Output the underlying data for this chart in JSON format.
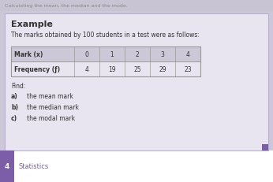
{
  "title_text": "Example",
  "subtitle_text": "The marks obtained by 100 students in a test were as follows:",
  "header_row": [
    "Mark (x)",
    "0",
    "1",
    "2",
    "3",
    "4"
  ],
  "data_row": [
    "Frequency (ƒ)",
    "4",
    "19",
    "25",
    "29",
    "23"
  ],
  "find_text": "Find:",
  "items": [
    [
      "a)",
      "the mean mark"
    ],
    [
      "b)",
      "the median mark"
    ],
    [
      "c)",
      "the modal mark"
    ]
  ],
  "footer_number": "4",
  "footer_text": "Statistics",
  "fig_bg": "#ccc8d8",
  "main_box_bg": "#e8e4f0",
  "main_box_edge": "#b8b0cc",
  "header_row_bg": "#ccc8d8",
  "data_row_bg": "#e8e4f0",
  "table_border": "#999999",
  "footer_bg": "#ffffff",
  "footer_bar_color": "#7b5ea7",
  "footer_text_color": "#7b5ea7",
  "footer_num_color": "#ffffff",
  "top_text": "Calculating the mean, the median and the mode.",
  "top_bg": "#c8c4d4",
  "top_text_color": "#888888",
  "purple_sq_color": "#7b5ea7",
  "text_color": "#333333"
}
